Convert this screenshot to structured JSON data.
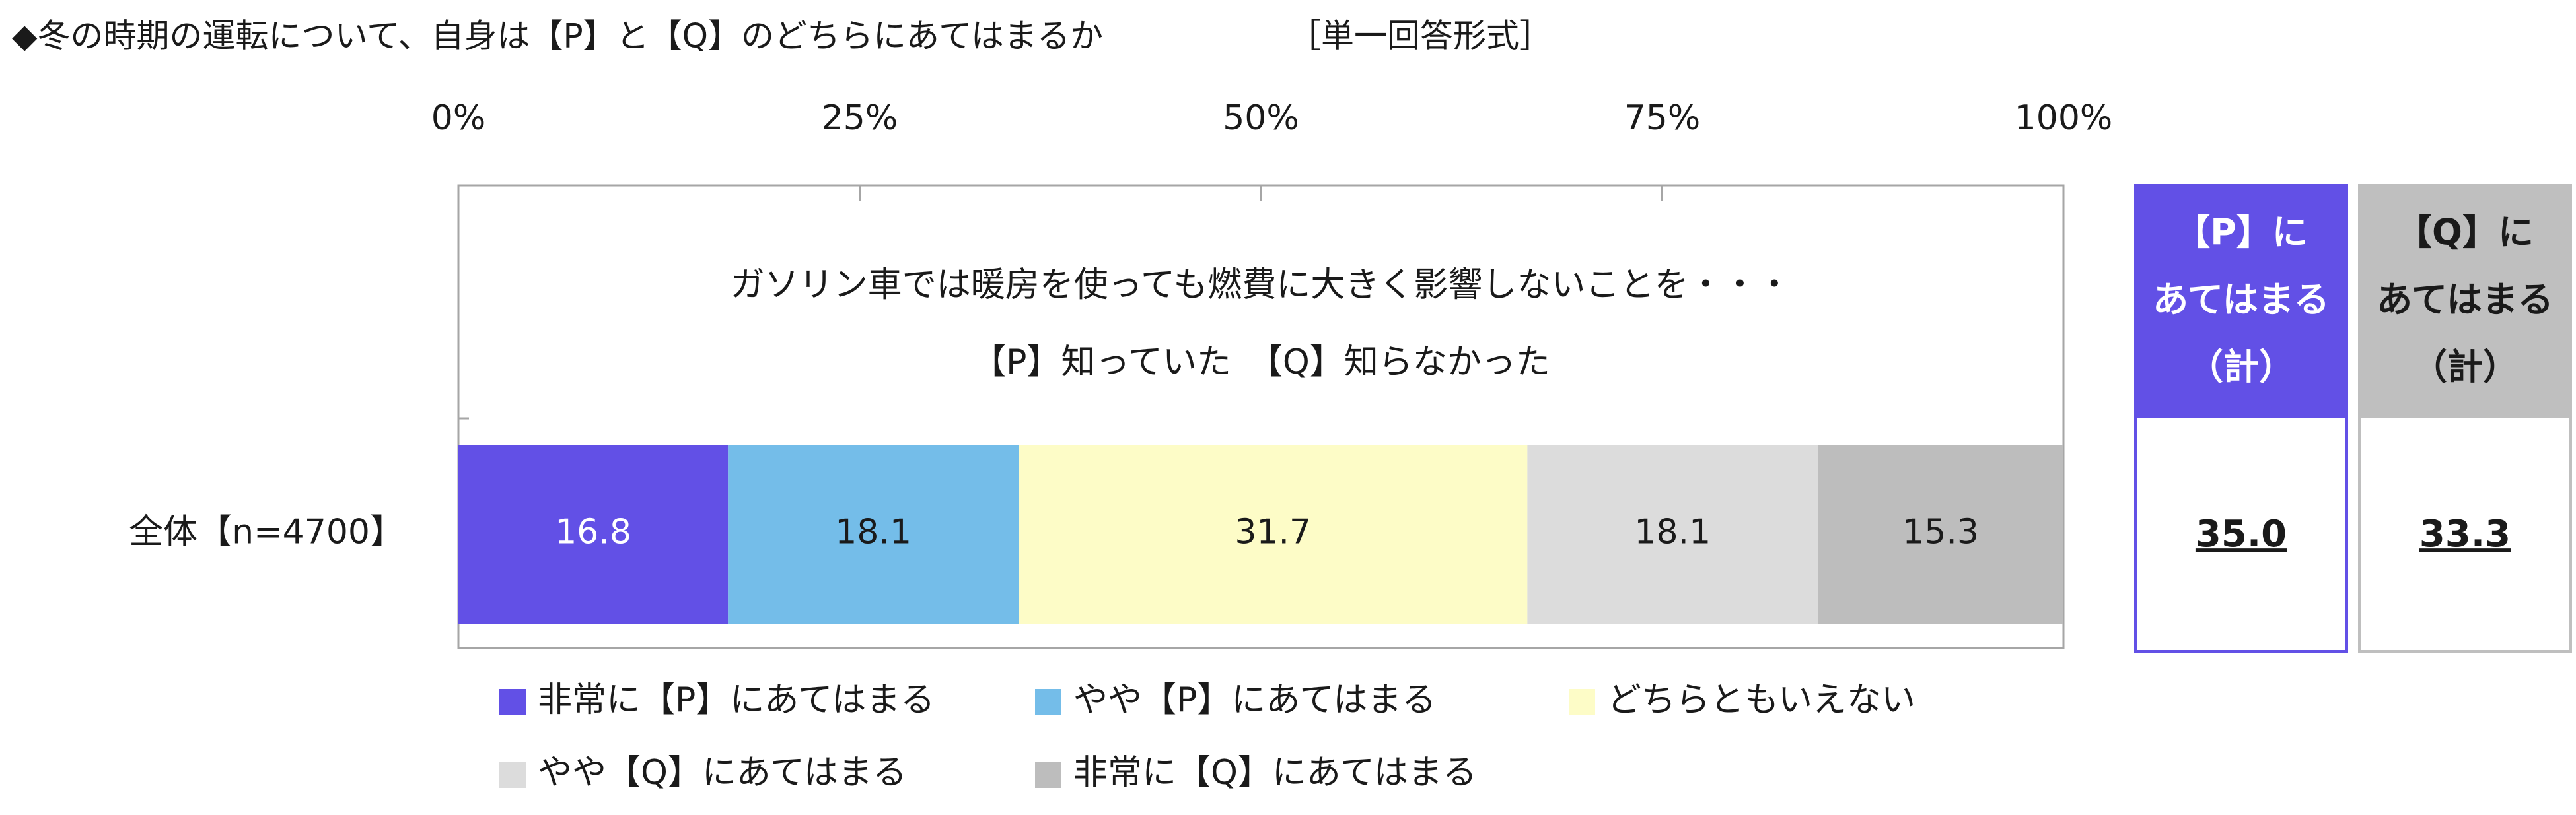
{
  "chart_data": {
    "type": "stacked_bar",
    "title": "◆冬の時期の運転について、自身は【P】と【Q】のどちらにあてはまるか",
    "subtitle": "［単一回答形式］",
    "question": [
      "ガソリン車では暖房を使っても燃費に大きく影響しないことを・・・",
      "【P】知っていた　【Q】知らなかった"
    ],
    "categories": [
      "全体【n=4700】"
    ],
    "series": [
      {
        "name": "非常に【P】にあてはまる",
        "color": "#6250e6",
        "values": [
          16.8
        ]
      },
      {
        "name": "やや【P】にあてはまる",
        "color": "#74bde9",
        "values": [
          18.1
        ]
      },
      {
        "name": "どちらともいえない",
        "color": "#fdfcc7",
        "values": [
          31.7
        ]
      },
      {
        "name": "やや【Q】にあてはまる",
        "color": "#dcdcdc",
        "values": [
          18.1
        ]
      },
      {
        "name": "非常に【Q】にあてはまる",
        "color": "#bdbdbd",
        "values": [
          15.3
        ]
      }
    ],
    "xlim": [
      0,
      100
    ],
    "xticks": [
      {
        "value": 0,
        "label": "0%"
      },
      {
        "value": 25,
        "label": "25%"
      },
      {
        "value": 50,
        "label": "50%"
      },
      {
        "value": 75,
        "label": "75%"
      },
      {
        "value": 100,
        "label": "100%"
      }
    ],
    "summary": {
      "headers": [
        [
          "【P】に",
          "あてはまる",
          "（計）"
        ],
        [
          "【Q】に",
          "あてはまる",
          "（計）"
        ]
      ],
      "colors": [
        "#6250e6",
        "#bfbfbf"
      ],
      "values": [
        35.0,
        33.3
      ],
      "value_labels": [
        "35.0",
        "33.3"
      ]
    }
  }
}
